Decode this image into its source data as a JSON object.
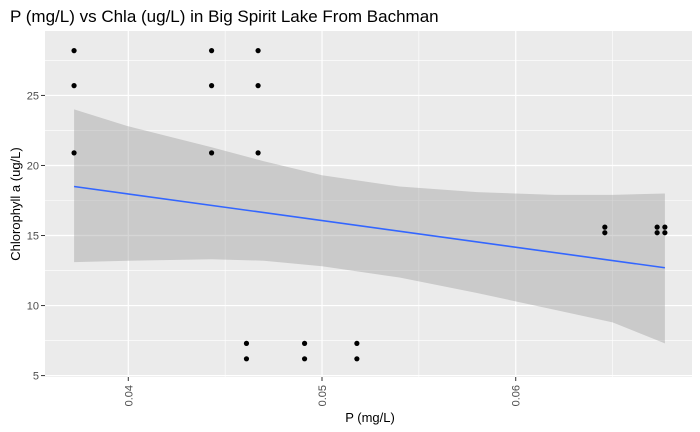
{
  "chart_data": {
    "type": "scatter",
    "title": "P (mg/L) vs Chla (ug/L) in Big Spirit Lake From Bachman",
    "xlabel": "P (mg/L)",
    "ylabel": "Chlorophyll a (ug/L)",
    "xlim": [
      0.0357,
      0.0691
    ],
    "ylim": [
      4.9,
      29.6
    ],
    "x_ticks": [
      0.04,
      0.05,
      0.06
    ],
    "x_tick_labels": [
      "0.04",
      "0.05",
      "0.06"
    ],
    "y_ticks": [
      5,
      10,
      15,
      20,
      25
    ],
    "y_tick_labels": [
      "5",
      "10",
      "15",
      "20",
      "25"
    ],
    "grid": true,
    "legend": "none",
    "colors": {
      "panel": "#ebebeb",
      "grid": "#ffffff",
      "points": "#000000",
      "trend": "#3366ff",
      "band": "#999999"
    },
    "points": [
      {
        "x": 0.0372,
        "y": 28.2
      },
      {
        "x": 0.0372,
        "y": 25.7
      },
      {
        "x": 0.0372,
        "y": 20.9
      },
      {
        "x": 0.0443,
        "y": 28.2
      },
      {
        "x": 0.0443,
        "y": 25.7
      },
      {
        "x": 0.0443,
        "y": 20.9
      },
      {
        "x": 0.0467,
        "y": 28.2
      },
      {
        "x": 0.0467,
        "y": 25.7
      },
      {
        "x": 0.0467,
        "y": 20.9
      },
      {
        "x": 0.0461,
        "y": 7.3
      },
      {
        "x": 0.0461,
        "y": 6.2
      },
      {
        "x": 0.0491,
        "y": 7.3
      },
      {
        "x": 0.0491,
        "y": 6.2
      },
      {
        "x": 0.0518,
        "y": 7.3
      },
      {
        "x": 0.0518,
        "y": 6.2
      },
      {
        "x": 0.0646,
        "y": 15.6
      },
      {
        "x": 0.0646,
        "y": 15.2
      },
      {
        "x": 0.0673,
        "y": 15.6
      },
      {
        "x": 0.0673,
        "y": 15.2
      },
      {
        "x": 0.0677,
        "y": 15.6
      },
      {
        "x": 0.0677,
        "y": 15.2
      }
    ],
    "trend_line": {
      "x": [
        0.0372,
        0.0677
      ],
      "y": [
        18.5,
        12.7
      ]
    },
    "confidence_band": {
      "x": [
        0.0372,
        0.04,
        0.0443,
        0.047,
        0.05,
        0.054,
        0.058,
        0.062,
        0.065,
        0.0677
      ],
      "upper": [
        24.0,
        22.8,
        21.3,
        20.3,
        19.3,
        18.5,
        18.1,
        17.9,
        17.9,
        18.0
      ],
      "lower": [
        13.1,
        13.2,
        13.3,
        13.2,
        12.8,
        12.0,
        10.9,
        9.7,
        8.8,
        7.3
      ]
    }
  }
}
